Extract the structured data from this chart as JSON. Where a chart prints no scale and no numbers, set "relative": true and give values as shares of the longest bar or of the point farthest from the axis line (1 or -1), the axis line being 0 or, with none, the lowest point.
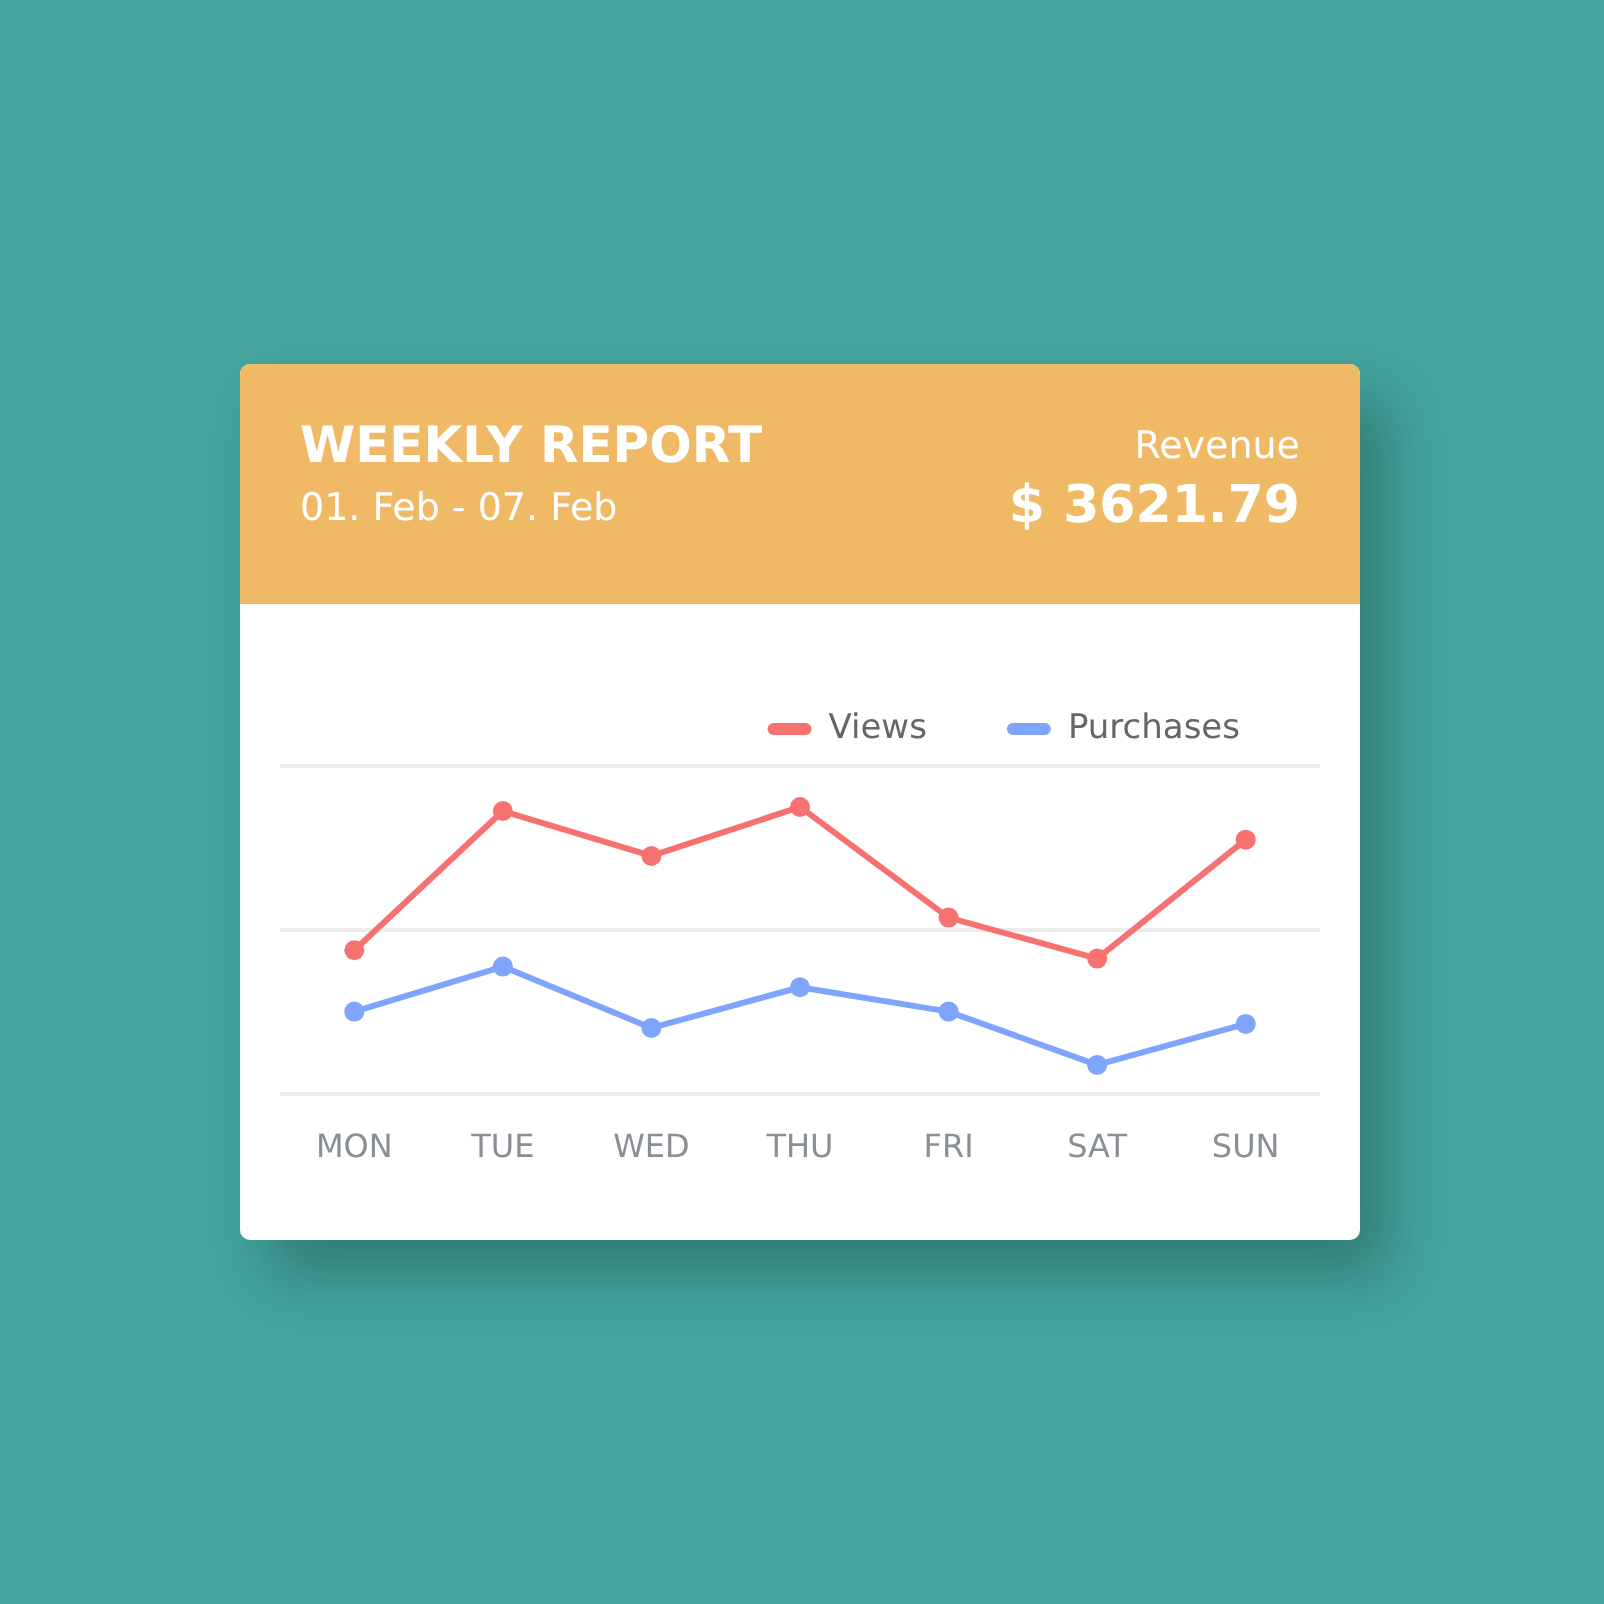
{
  "chart_data": {
    "type": "line",
    "title": "WEEKLY REPORT",
    "subtitle": "01. Feb - 07. Feb",
    "annotations": [
      "Revenue",
      "$ 3621.79"
    ],
    "categories": [
      "MON",
      "TUE",
      "WED",
      "THU",
      "FRI",
      "SAT",
      "SUN"
    ],
    "relative": true,
    "series": [
      {
        "name": "Views",
        "color": "#f87171",
        "values": [
          0.5,
          0.986,
          0.829,
          1,
          0.614,
          0.471,
          0.886
        ]
      },
      {
        "name": "Purchases",
        "color": "#7ea4fb",
        "values": [
          0.286,
          0.443,
          0.229,
          0.371,
          0.286,
          0.1,
          0.243
        ]
      }
    ],
    "ref_lines": [
      {
        "axis": "y",
        "value": 0.571,
        "color": "#ececec"
      }
    ],
    "legend": "top right",
    "marker": "circle",
    "line_style": "solid",
    "tick_labels": "x"
  }
}
